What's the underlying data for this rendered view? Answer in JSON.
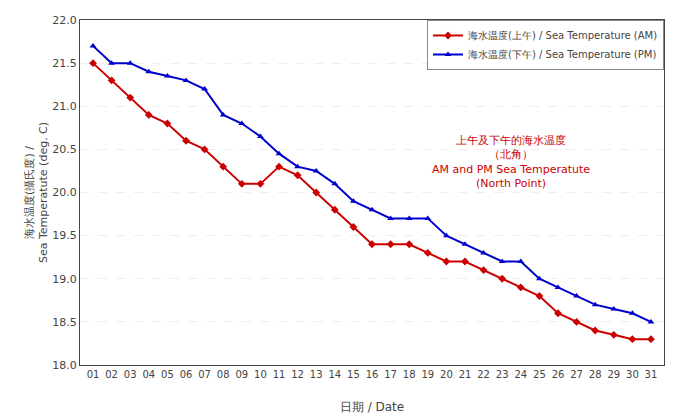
{
  "chart_data": {
    "type": "line",
    "xlabel": "日期 / Date",
    "ylabel": "海水温度(攝氏度) /\nSea Temperatute (deg. C)",
    "x": [
      1,
      2,
      3,
      4,
      5,
      6,
      7,
      8,
      9,
      10,
      11,
      12,
      13,
      14,
      15,
      16,
      17,
      18,
      19,
      20,
      21,
      22,
      23,
      24,
      25,
      26,
      27,
      28,
      29,
      30,
      31
    ],
    "xlim": [
      0.3,
      31.7
    ],
    "xticks": [
      {
        "value": 1,
        "label": "01"
      },
      {
        "value": 2,
        "label": "02"
      },
      {
        "value": 3,
        "label": "03"
      },
      {
        "value": 4,
        "label": "04"
      },
      {
        "value": 5,
        "label": "05"
      },
      {
        "value": 6,
        "label": "06"
      },
      {
        "value": 7,
        "label": "07"
      },
      {
        "value": 8,
        "label": "08"
      },
      {
        "value": 9,
        "label": "09"
      },
      {
        "value": 10,
        "label": "10"
      },
      {
        "value": 11,
        "label": "11"
      },
      {
        "value": 12,
        "label": "12"
      },
      {
        "value": 13,
        "label": "13"
      },
      {
        "value": 14,
        "label": "14"
      },
      {
        "value": 15,
        "label": "15"
      },
      {
        "value": 16,
        "label": "16"
      },
      {
        "value": 17,
        "label": "17"
      },
      {
        "value": 18,
        "label": "18"
      },
      {
        "value": 19,
        "label": "19"
      },
      {
        "value": 20,
        "label": "20"
      },
      {
        "value": 21,
        "label": "21"
      },
      {
        "value": 22,
        "label": "22"
      },
      {
        "value": 23,
        "label": "23"
      },
      {
        "value": 24,
        "label": "24"
      },
      {
        "value": 25,
        "label": "25"
      },
      {
        "value": 26,
        "label": "26"
      },
      {
        "value": 27,
        "label": "27"
      },
      {
        "value": 28,
        "label": "28"
      },
      {
        "value": 29,
        "label": "29"
      },
      {
        "value": 30,
        "label": "30"
      },
      {
        "value": 31,
        "label": "31"
      }
    ],
    "ylim": [
      18.0,
      22.0
    ],
    "yticks": [
      {
        "value": 18,
        "label": "18.0"
      },
      18.5,
      {
        "value": 19,
        "label": "19.0"
      },
      19.5,
      {
        "value": 20,
        "label": "20.0"
      },
      20.5,
      {
        "value": 21,
        "label": "21.0"
      },
      21.5,
      {
        "value": 22,
        "label": "22.0"
      }
    ],
    "grid": "y",
    "legend": "upper right",
    "series": [
      {
        "name": "海水温度(上午) / Sea Temperature (AM)",
        "color": "#cc0000",
        "marker": "diamond",
        "line_style": "solid",
        "values": [
          21.5,
          21.3,
          21.1,
          20.9,
          20.8,
          20.6,
          20.5,
          20.3,
          20.1,
          20.1,
          20.3,
          20.2,
          20.0,
          19.8,
          19.6,
          19.4,
          19.4,
          19.4,
          19.3,
          19.2,
          19.2,
          19.1,
          19.0,
          18.9,
          18.8,
          18.6,
          18.5,
          18.4,
          18.35,
          18.3,
          18.3
        ]
      },
      {
        "name": "海水温度(下午) / Sea Temperature (PM)",
        "color": "#0000cc",
        "marker": "triangle-up",
        "line_style": "solid",
        "values": [
          21.7,
          21.5,
          21.5,
          21.4,
          21.35,
          21.3,
          21.2,
          20.9,
          20.8,
          20.65,
          20.45,
          20.3,
          20.25,
          20.1,
          19.9,
          19.8,
          19.7,
          19.7,
          19.7,
          19.5,
          19.4,
          19.3,
          19.2,
          19.2,
          19.0,
          18.9,
          18.8,
          18.7,
          18.65,
          18.6,
          18.5
        ]
      }
    ],
    "annotations": [
      {
        "text": "上午及下午的海水温度\n（北角）\nAM and PM Sea Temperatute\n(North Point)",
        "x": 23.5,
        "y": 20.35,
        "color": "#cc0000"
      }
    ]
  }
}
